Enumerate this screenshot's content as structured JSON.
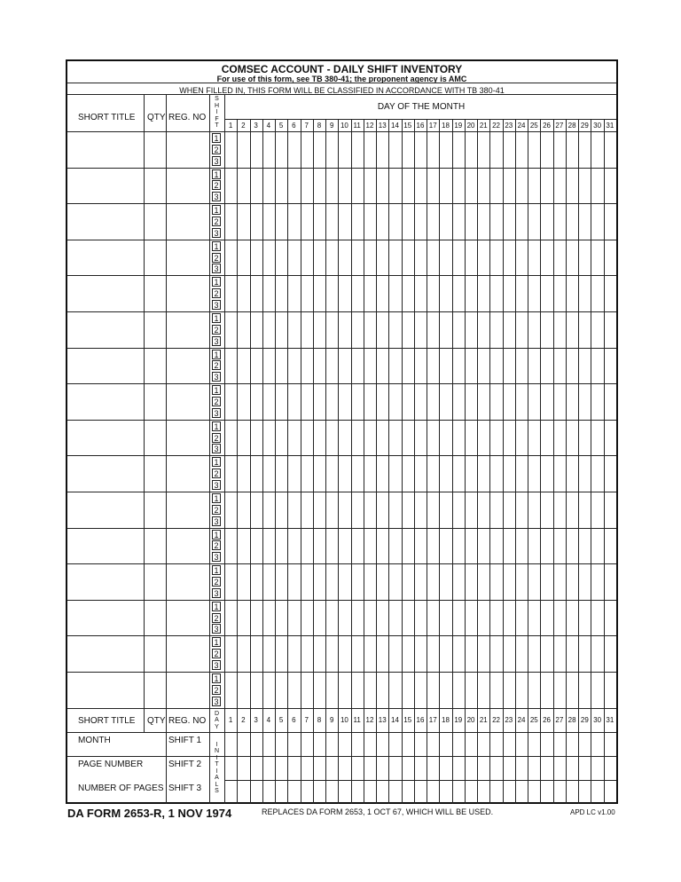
{
  "header": {
    "title": "COMSEC ACCOUNT - DAILY SHIFT INVENTORY",
    "subtitle": "For use of this form, see TB 380-41; the proponent agency is AMC",
    "classification": "WHEN FILLED IN, THIS FORM WILL BE CLASSIFIED IN ACCORDANCE WITH TB 380-41"
  },
  "columns": {
    "short_title": "SHORT TITLE",
    "qty": "QTY",
    "reg_no": "REG. NO",
    "shift": "SHIFT",
    "day_of_month": "DAY OF THE MONTH",
    "day": "DAY",
    "initials": "INITIALS"
  },
  "days": [
    "1",
    "2",
    "3",
    "4",
    "5",
    "6",
    "7",
    "8",
    "9",
    "10",
    "11",
    "12",
    "13",
    "14",
    "15",
    "16",
    "17",
    "18",
    "19",
    "20",
    "21",
    "22",
    "23",
    "24",
    "25",
    "26",
    "27",
    "28",
    "29",
    "30",
    "31"
  ],
  "shift_numbers": [
    "1",
    "2",
    "3"
  ],
  "bottom": {
    "month": "MONTH",
    "page_number": "PAGE NUMBER",
    "number_of_pages": "NUMBER OF PAGES",
    "shift1": "SHIFT 1",
    "shift2": "SHIFT 2",
    "shift3": "SHIFT 3"
  },
  "footer": {
    "form_id": "DA FORM 2653-R, 1 NOV 1974",
    "replaces": "REPLACES DA FORM 2653, 1 OCT 67, WHICH WILL BE USED.",
    "version": "APD LC v1.00"
  }
}
